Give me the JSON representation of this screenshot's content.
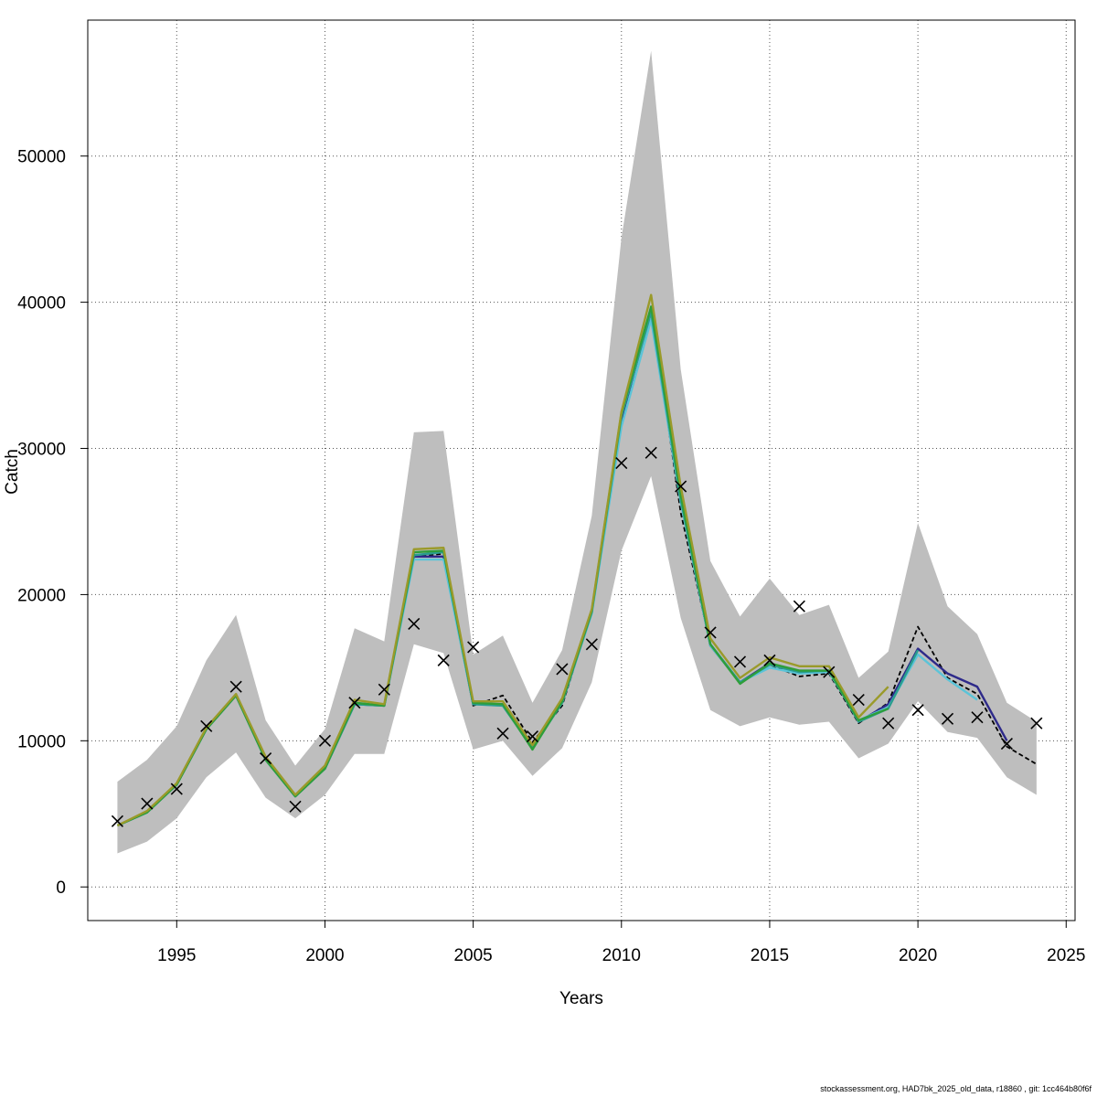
{
  "chart_data": {
    "type": "line",
    "xlabel": "Years",
    "ylabel": "Catch",
    "xlim": [
      1992,
      2025.3
    ],
    "ylim": [
      -2300,
      59300
    ],
    "x_ticks": [
      1995,
      2000,
      2005,
      2010,
      2015,
      2020,
      2025
    ],
    "y_ticks": [
      0,
      10000,
      20000,
      30000,
      40000,
      50000
    ],
    "x_tick_labels": [
      "1995",
      "2000",
      "2005",
      "2010",
      "2015",
      "2020",
      "2025"
    ],
    "y_tick_labels": [
      "0",
      "10000",
      "20000",
      "30000",
      "40000",
      "50000"
    ],
    "grid": true,
    "confidence_band": {
      "color": "#bebebe",
      "x": [
        1993,
        1994,
        1995,
        1996,
        1997,
        1998,
        1999,
        2000,
        2001,
        2002,
        2003,
        2004,
        2005,
        2006,
        2007,
        2008,
        2009,
        2010,
        2011,
        2012,
        2013,
        2014,
        2015,
        2016,
        2017,
        2018,
        2019,
        2020,
        2021,
        2022,
        2023,
        2024
      ],
      "lower": [
        2300,
        3100,
        4700,
        7500,
        9200,
        6100,
        4700,
        6300,
        9100,
        9100,
        16600,
        16000,
        9400,
        10000,
        7600,
        9500,
        14000,
        23000,
        28100,
        18400,
        12100,
        11000,
        11600,
        11100,
        11300,
        8800,
        9800,
        12700,
        10600,
        10200,
        7500,
        6300
      ],
      "upper": [
        7200,
        8700,
        11000,
        15500,
        18600,
        11400,
        8300,
        10800,
        17700,
        16800,
        31100,
        31200,
        15900,
        17200,
        12600,
        16200,
        25400,
        44400,
        57200,
        35400,
        22300,
        18500,
        21100,
        18600,
        19300,
        14300,
        16100,
        24900,
        19200,
        17300,
        12600,
        11300
      ]
    },
    "observed": {
      "marker": "x",
      "color": "#000000",
      "x": [
        1993,
        1994,
        1995,
        1996,
        1997,
        1998,
        1999,
        2000,
        2001,
        2002,
        2003,
        2004,
        2005,
        2006,
        2007,
        2008,
        2009,
        2010,
        2011,
        2012,
        2013,
        2014,
        2015,
        2016,
        2017,
        2018,
        2019,
        2020,
        2021,
        2022,
        2023,
        2024
      ],
      "y": [
        4500,
        5700,
        6700,
        11000,
        13700,
        8800,
        5500,
        10000,
        12600,
        13500,
        18000,
        15500,
        16400,
        10500,
        10300,
        14900,
        16600,
        29000,
        29700,
        27400,
        17400,
        15400,
        15500,
        19200,
        14700,
        12800,
        11200,
        12100,
        11500,
        11600,
        9800,
        11200
      ]
    },
    "series": [
      {
        "color": "#000000",
        "dashed": true,
        "x": [
          1993,
          1994,
          1995,
          1996,
          1997,
          1998,
          1999,
          2000,
          2001,
          2002,
          2003,
          2004,
          2005,
          2006,
          2007,
          2008,
          2009,
          2010,
          2011,
          2012,
          2013,
          2014,
          2015,
          2016,
          2017,
          2018,
          2019,
          2020,
          2021,
          2022,
          2023,
          2024
        ],
        "values": [
          4200,
          5100,
          7000,
          10800,
          13100,
          8700,
          6200,
          8100,
          12500,
          12400,
          22600,
          22800,
          12400,
          13100,
          9900,
          12400,
          18900,
          31800,
          39700,
          25600,
          16600,
          14000,
          15200,
          14400,
          14600,
          11200,
          12600,
          17800,
          14300,
          13200,
          9600,
          8400
        ]
      },
      {
        "color": "#2e2a8a",
        "x": [
          1993,
          1994,
          1995,
          1996,
          1997,
          1998,
          1999,
          2000,
          2001,
          2002,
          2003,
          2004,
          2005,
          2006,
          2007,
          2008,
          2009,
          2010,
          2011,
          2012,
          2013,
          2014,
          2015,
          2016,
          2017,
          2018,
          2019,
          2020,
          2021,
          2022,
          2023
        ],
        "values": [
          4200,
          5100,
          7000,
          10800,
          13100,
          8700,
          6200,
          8100,
          12500,
          12400,
          22600,
          22600,
          12500,
          12500,
          9600,
          12600,
          18800,
          32000,
          39500,
          26400,
          16500,
          14000,
          15300,
          14700,
          14800,
          11300,
          12500,
          16300,
          14600,
          13700,
          10000
        ]
      },
      {
        "color": "#5bc4d8",
        "x": [
          1993,
          1994,
          1995,
          1996,
          1997,
          1998,
          1999,
          2000,
          2001,
          2002,
          2003,
          2004,
          2005,
          2006,
          2007,
          2008,
          2009,
          2010,
          2011,
          2012,
          2013,
          2014,
          2015,
          2016,
          2017,
          2018,
          2019,
          2020,
          2021,
          2022
        ],
        "values": [
          4200,
          5100,
          7000,
          10800,
          13100,
          8700,
          6200,
          8100,
          12500,
          12400,
          22400,
          22400,
          12500,
          12400,
          9500,
          12600,
          18700,
          31500,
          38800,
          26300,
          16500,
          14000,
          15000,
          14600,
          14700,
          11400,
          12300,
          15900,
          14200,
          12800
        ]
      },
      {
        "color": "#2a9d8f",
        "x": [
          1993,
          1994,
          1995,
          1996,
          1997,
          1998,
          1999,
          2000,
          2001,
          2002,
          2003,
          2004,
          2005,
          2006,
          2007,
          2008,
          2009,
          2010,
          2011,
          2012,
          2013,
          2014,
          2015,
          2016,
          2017,
          2018,
          2019,
          2020
        ],
        "values": [
          4200,
          5100,
          7000,
          10800,
          13100,
          8700,
          6200,
          8100,
          12500,
          12400,
          22700,
          22900,
          12500,
          12400,
          9500,
          12600,
          18800,
          32200,
          39300,
          26500,
          16600,
          14000,
          15200,
          14700,
          14800,
          11300,
          12200,
          16200
        ]
      },
      {
        "color": "#2e9e3a",
        "x": [
          1993,
          1994,
          1995,
          1996,
          1997,
          1998,
          1999,
          2000,
          2001,
          2002,
          2003,
          2004,
          2005,
          2006,
          2007,
          2008,
          2009,
          2010,
          2011,
          2012,
          2013,
          2014,
          2015,
          2016,
          2017,
          2018,
          2019
        ],
        "values": [
          4200,
          5100,
          7000,
          10800,
          13100,
          8700,
          6200,
          8100,
          12600,
          12400,
          22900,
          23000,
          12600,
          12500,
          9400,
          12700,
          18900,
          32400,
          39700,
          26800,
          16600,
          13900,
          15300,
          14800,
          14800,
          11400,
          12200
        ]
      },
      {
        "color": "#9a9a2a",
        "x": [
          1993,
          1994,
          1995,
          1996,
          1997,
          1998,
          1999,
          2000,
          2001,
          2002,
          2003,
          2004,
          2005,
          2006,
          2007,
          2008,
          2009,
          2010,
          2011,
          2012,
          2013,
          2014,
          2015,
          2016,
          2017,
          2018,
          2019
        ],
        "values": [
          4200,
          5200,
          7100,
          10900,
          13200,
          8900,
          6300,
          8300,
          12800,
          12500,
          23100,
          23200,
          12700,
          12700,
          9700,
          12900,
          19000,
          32500,
          40500,
          27400,
          17000,
          14300,
          15700,
          15100,
          15100,
          11600,
          13700
        ]
      }
    ]
  },
  "footer": {
    "text": "stockassessment.org, HAD7bk_2025_old_data, r18860 , git: 1cc464b80f6f"
  }
}
